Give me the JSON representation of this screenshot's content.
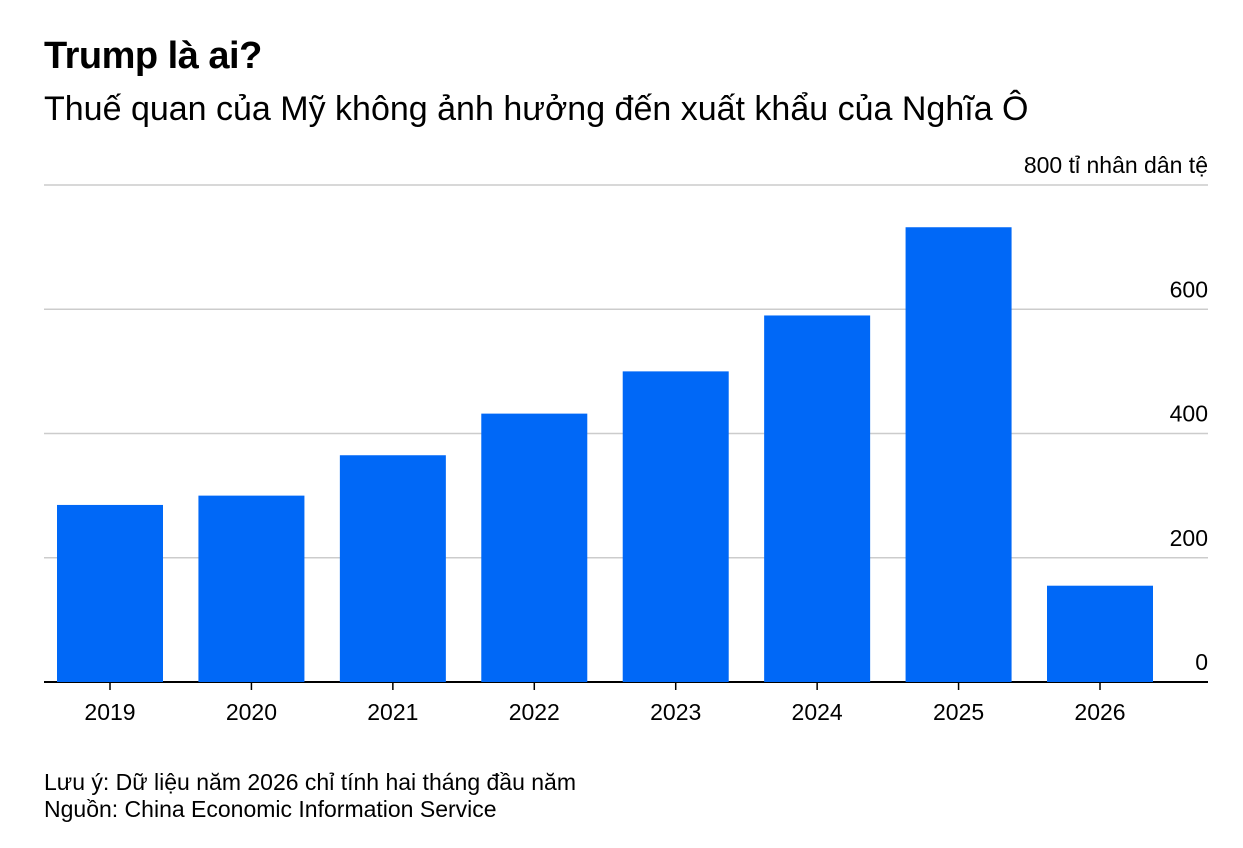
{
  "title": "Trump là ai?",
  "subtitle": "Thuế quan của Mỹ không ảnh hưởng đến xuất khẩu của Nghĩa Ô",
  "unit_label": "800 tỉ nhân dân tệ",
  "note": "Lưu ý: Dữ liệu năm 2026 chỉ tính hai tháng đầu năm",
  "source": "Nguồn: China Economic Information Service",
  "colors": {
    "bar": "#0068F7",
    "grid": "#cccccc",
    "axis": "#000000"
  },
  "chart_data": {
    "type": "bar",
    "title": "Trump là ai?",
    "subtitle": "Thuế quan của Mỹ không ảnh hưởng đến xuất khẩu của Nghĩa Ô",
    "xlabel": "",
    "ylabel": "tỉ nhân dân tệ",
    "categories": [
      "2019",
      "2020",
      "2021",
      "2022",
      "2023",
      "2024",
      "2025",
      "2026"
    ],
    "values": [
      285,
      300,
      365,
      432,
      500,
      590,
      732,
      155
    ],
    "ylim": [
      0,
      800
    ],
    "yticks": [
      0,
      200,
      400,
      600,
      800
    ],
    "ytick_labels": [
      "0",
      "200",
      "400",
      "600",
      "800 tỉ nhân dân tệ"
    ],
    "grid": true,
    "y_axis_position": "right"
  }
}
